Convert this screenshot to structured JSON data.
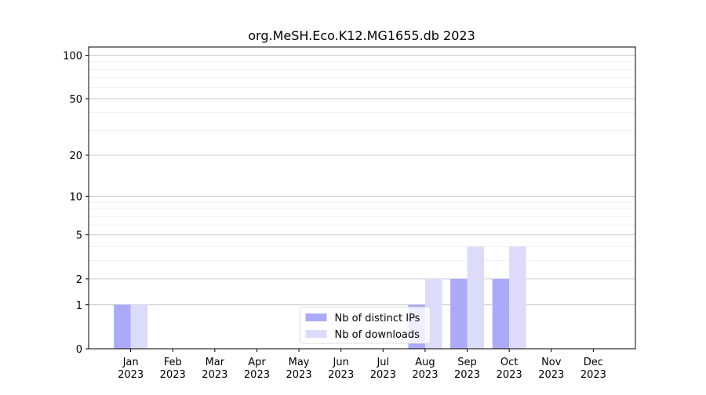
{
  "chart_data": {
    "type": "bar",
    "title": "org.MeSH.Eco.K12.MG1655.db 2023",
    "categories": [
      [
        "Jan",
        "2023"
      ],
      [
        "Feb",
        "2023"
      ],
      [
        "Mar",
        "2023"
      ],
      [
        "Apr",
        "2023"
      ],
      [
        "May",
        "2023"
      ],
      [
        "Jun",
        "2023"
      ],
      [
        "Jul",
        "2023"
      ],
      [
        "Aug",
        "2023"
      ],
      [
        "Sep",
        "2023"
      ],
      [
        "Oct",
        "2023"
      ],
      [
        "Nov",
        "2023"
      ],
      [
        "Dec",
        "2023"
      ]
    ],
    "series": [
      {
        "name": "Nb of distinct IPs",
        "color": "#aaaaf8",
        "values": [
          1,
          0,
          0,
          0,
          0,
          0,
          0,
          1,
          2,
          2,
          0,
          0
        ]
      },
      {
        "name": "Nb of downloads",
        "color": "#dcdcfa",
        "values": [
          1,
          0,
          0,
          0,
          0,
          0,
          0,
          2,
          4,
          4,
          0,
          0
        ]
      }
    ],
    "yscale": "log1p",
    "ylim": [
      0,
      114
    ],
    "yticks": [
      0,
      1,
      2,
      5,
      10,
      20,
      50,
      100
    ],
    "minor_yticks": [
      3,
      4,
      6,
      7,
      8,
      9,
      30,
      40,
      60,
      70,
      80,
      90
    ],
    "grid": true,
    "legend": "lower center"
  }
}
